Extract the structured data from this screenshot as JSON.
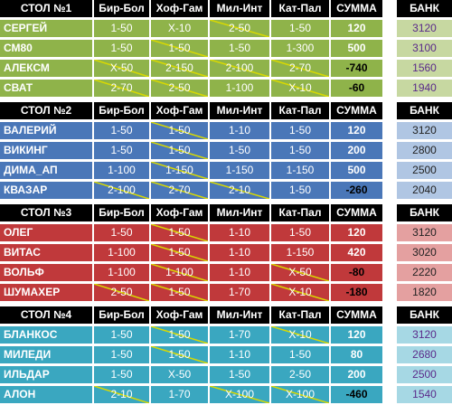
{
  "headers": [
    "Бир-Бол",
    "Хоф-Гам",
    "Мил-Инт",
    "Кат-Пал",
    "СУММА"
  ],
  "bank_header": "БАНК",
  "tables": [
    {
      "title": "СТОЛ №1",
      "color": "#8fb34a",
      "bank_color": "#c7d8a1",
      "rows": [
        {
          "name": "СЕРГЕЙ",
          "picks": [
            "1-50",
            "X-10",
            "2-50",
            "1-50"
          ],
          "struck": [
            false,
            false,
            true,
            false
          ],
          "sum": "120",
          "bank": "3120"
        },
        {
          "name": "СМ80",
          "picks": [
            "1-50",
            "1-50",
            "1-50",
            "1-300"
          ],
          "struck": [
            false,
            true,
            false,
            false
          ],
          "sum": "500",
          "bank": "3100"
        },
        {
          "name": "АЛЕКСМ",
          "picks": [
            "X-50",
            "2-150",
            "2-100",
            "2-70"
          ],
          "struck": [
            true,
            true,
            true,
            true
          ],
          "sum": "-740",
          "bank": "1560"
        },
        {
          "name": "СВАТ",
          "picks": [
            "2-70",
            "2-50",
            "1-100",
            "X-10"
          ],
          "struck": [
            true,
            true,
            false,
            true
          ],
          "sum": "-60",
          "bank": "1940"
        }
      ]
    },
    {
      "title": "СТОЛ №2",
      "color": "#4a77b8",
      "bank_color": "#b0c6e3",
      "rows": [
        {
          "name": "ВАЛЕРИЙ",
          "picks": [
            "1-50",
            "1-50",
            "1-10",
            "1-50"
          ],
          "struck": [
            false,
            true,
            false,
            false
          ],
          "sum": "120",
          "bank": "3120"
        },
        {
          "name": "ВИКИНГ",
          "picks": [
            "1-50",
            "1-50",
            "1-50",
            "1-50"
          ],
          "struck": [
            false,
            true,
            false,
            false
          ],
          "sum": "200",
          "bank": "2800"
        },
        {
          "name": "ДИМА_АП",
          "picks": [
            "1-100",
            "1-150",
            "1-150",
            "1-150"
          ],
          "struck": [
            false,
            true,
            false,
            false
          ],
          "sum": "500",
          "bank": "2500"
        },
        {
          "name": "КВАЗАР",
          "picks": [
            "2-100",
            "2-70",
            "2-10",
            "1-50"
          ],
          "struck": [
            true,
            true,
            true,
            false
          ],
          "sum": "-260",
          "bank": "2040"
        }
      ]
    },
    {
      "title": "СТОЛ №3",
      "color": "#c0393b",
      "bank_color": "#e4a0a0",
      "rows": [
        {
          "name": "ОЛЕГ",
          "picks": [
            "1-50",
            "1-50",
            "1-10",
            "1-50"
          ],
          "struck": [
            false,
            true,
            false,
            false
          ],
          "sum": "120",
          "bank": "3120"
        },
        {
          "name": "ВИТАС",
          "picks": [
            "1-100",
            "1-50",
            "1-10",
            "1-150"
          ],
          "struck": [
            false,
            true,
            false,
            false
          ],
          "sum": "420",
          "bank": "3020"
        },
        {
          "name": "ВОЛЬФ",
          "picks": [
            "1-100",
            "1-100",
            "1-10",
            "X-50"
          ],
          "struck": [
            false,
            true,
            false,
            true
          ],
          "sum": "-80",
          "bank": "2220"
        },
        {
          "name": "ШУМАХЕР",
          "picks": [
            "2-50",
            "1-50",
            "1-70",
            "X-10"
          ],
          "struck": [
            true,
            true,
            false,
            true
          ],
          "sum": "-180",
          "bank": "1820"
        }
      ]
    },
    {
      "title": "СТОЛ №4",
      "color": "#3aa7c0",
      "bank_color": "#a6d8e4",
      "rows": [
        {
          "name": "БЛАНКОС",
          "picks": [
            "1-50",
            "1-50",
            "1-70",
            "X-10"
          ],
          "struck": [
            false,
            true,
            false,
            true
          ],
          "sum": "120",
          "bank": "3120"
        },
        {
          "name": "МИЛЕДИ",
          "picks": [
            "1-50",
            "1-50",
            "1-10",
            "1-50"
          ],
          "struck": [
            false,
            true,
            false,
            false
          ],
          "sum": "80",
          "bank": "2680"
        },
        {
          "name": "ИЛЬДАР",
          "picks": [
            "1-50",
            "X-50",
            "1-50",
            "2-50"
          ],
          "struck": [
            false,
            false,
            false,
            false
          ],
          "sum": "200",
          "bank": "2500"
        },
        {
          "name": "АЛОН",
          "picks": [
            "2-10",
            "1-70",
            "X-100",
            "X-100"
          ],
          "struck": [
            true,
            false,
            true,
            true
          ],
          "sum": "-460",
          "bank": "1540"
        }
      ]
    }
  ]
}
